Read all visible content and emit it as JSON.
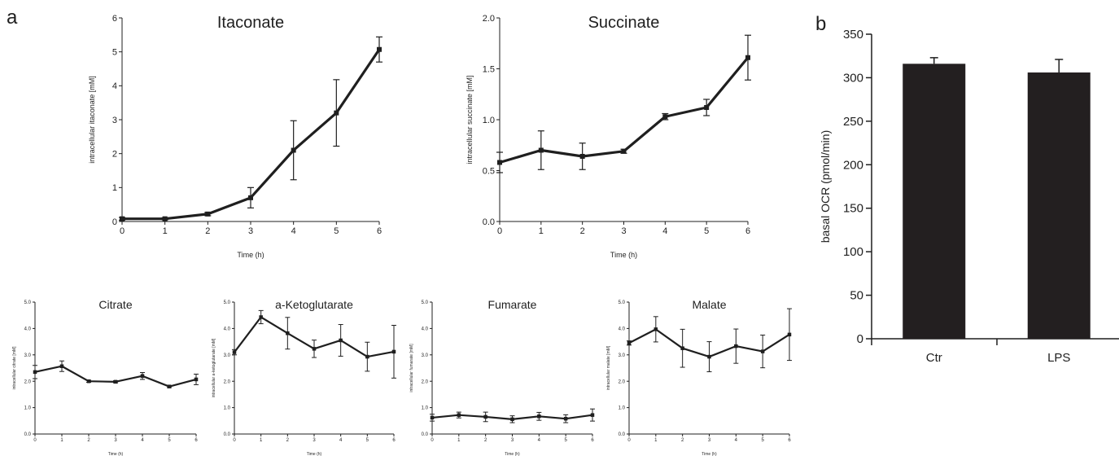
{
  "panel_labels": {
    "a": "a",
    "b": "b"
  },
  "colors": {
    "ink": "#1f1f1f",
    "bar": "#231f20"
  },
  "chart_data": [
    {
      "id": "itaconate",
      "type": "line",
      "title": "Itaconate",
      "xlabel": "Time (h)",
      "ylabel": "intracellular itaconate [mM]",
      "x": [
        0,
        1,
        2,
        3,
        4,
        5,
        6
      ],
      "xticks": [
        "0",
        "1",
        "2",
        "3",
        "4",
        "5",
        "6"
      ],
      "xlim": [
        0,
        6
      ],
      "ylim": [
        0,
        6
      ],
      "yticks": [
        "0",
        "1",
        "2",
        "3",
        "4",
        "5",
        "6"
      ],
      "values": [
        0.08,
        0.08,
        0.22,
        0.7,
        2.1,
        3.2,
        5.07
      ],
      "errors": [
        0.04,
        0.03,
        0.05,
        0.3,
        0.87,
        0.98,
        0.37
      ]
    },
    {
      "id": "succinate",
      "type": "line",
      "title": "Succinate",
      "xlabel": "Time (h)",
      "ylabel": "intracellular succinate [mM]",
      "x": [
        0,
        1,
        2,
        3,
        4,
        5,
        6
      ],
      "xticks": [
        "0",
        "1",
        "2",
        "3",
        "4",
        "5",
        "6"
      ],
      "xlim": [
        0,
        6
      ],
      "ylim": [
        0,
        2
      ],
      "yticks": [
        "0.0",
        "0.5",
        "1.0",
        "1.5",
        "2.0"
      ],
      "values": [
        0.58,
        0.7,
        0.64,
        0.69,
        1.03,
        1.12,
        1.61
      ],
      "errors": [
        0.1,
        0.19,
        0.13,
        0.02,
        0.03,
        0.08,
        0.22
      ]
    },
    {
      "id": "citrate",
      "type": "line",
      "title": "Citrate",
      "xlabel": "Time (h)",
      "ylabel": "intracellular citrate [mM]",
      "x": [
        0,
        1,
        2,
        3,
        4,
        5,
        6
      ],
      "xticks": [
        "0",
        "1",
        "2",
        "3",
        "4",
        "5",
        "6"
      ],
      "xlim": [
        0,
        6
      ],
      "ylim": [
        0,
        5
      ],
      "yticks": [
        "0.0",
        "1.0",
        "2.0",
        "3.0",
        "4.0",
        "5.0"
      ],
      "values": [
        2.35,
        2.57,
        2.0,
        1.98,
        2.2,
        1.8,
        2.07
      ],
      "errors": [
        0.25,
        0.2,
        0.04,
        0.04,
        0.13,
        0.04,
        0.2
      ]
    },
    {
      "id": "akg",
      "type": "line",
      "title": "a-Ketoglutarate",
      "xlabel": "Time (h)",
      "ylabel": "intracellular a-ketoglutarate [mM]",
      "x": [
        0,
        1,
        2,
        3,
        4,
        5,
        6
      ],
      "xticks": [
        "0",
        "1",
        "2",
        "3",
        "4",
        "5",
        "6"
      ],
      "xlim": [
        0,
        6
      ],
      "ylim": [
        0,
        5
      ],
      "yticks": [
        "0.0",
        "1.0",
        "2.0",
        "3.0",
        "4.0",
        "5.0"
      ],
      "values": [
        3.1,
        4.43,
        3.82,
        3.23,
        3.55,
        2.93,
        3.12
      ],
      "errors": [
        0.1,
        0.25,
        0.6,
        0.33,
        0.6,
        0.55,
        1.0
      ]
    },
    {
      "id": "fumarate",
      "type": "line",
      "title": "Fumarate",
      "xlabel": "Time (h)",
      "ylabel": "intracellular fumarate [mM]",
      "x": [
        0,
        1,
        2,
        3,
        4,
        5,
        6
      ],
      "xticks": [
        "0",
        "1",
        "2",
        "3",
        "4",
        "5",
        "6"
      ],
      "xlim": [
        0,
        6
      ],
      "ylim": [
        0,
        5
      ],
      "yticks": [
        "0.0",
        "1.0",
        "2.0",
        "3.0",
        "4.0",
        "5.0"
      ],
      "values": [
        0.62,
        0.72,
        0.65,
        0.56,
        0.67,
        0.58,
        0.72
      ],
      "errors": [
        0.13,
        0.11,
        0.18,
        0.13,
        0.15,
        0.15,
        0.23
      ]
    },
    {
      "id": "malate",
      "type": "line",
      "title": "Malate",
      "xlabel": "Time (h)",
      "ylabel": "intracellular malate [mM]",
      "x": [
        0,
        1,
        2,
        3,
        4,
        5,
        6
      ],
      "xticks": [
        "0",
        "1",
        "2",
        "3",
        "4",
        "5",
        "6"
      ],
      "xlim": [
        0,
        6
      ],
      "ylim": [
        0,
        5
      ],
      "yticks": [
        "0.0",
        "1.0",
        "2.0",
        "3.0",
        "4.0",
        "5.0"
      ],
      "values": [
        3.45,
        3.97,
        3.25,
        2.93,
        3.33,
        3.13,
        3.77
      ],
      "errors": [
        0.08,
        0.48,
        0.72,
        0.57,
        0.65,
        0.62,
        0.98
      ]
    },
    {
      "id": "ocr",
      "type": "bar",
      "title": "",
      "xlabel": "",
      "ylabel": "basal OCR (pmol/min)",
      "categories": [
        "Ctr",
        "LPS"
      ],
      "values": [
        316,
        306
      ],
      "errors": [
        7,
        15
      ],
      "ylim": [
        0,
        350
      ],
      "yticks": [
        "0",
        "50",
        "100",
        "150",
        "200",
        "250",
        "300",
        "350"
      ]
    }
  ]
}
